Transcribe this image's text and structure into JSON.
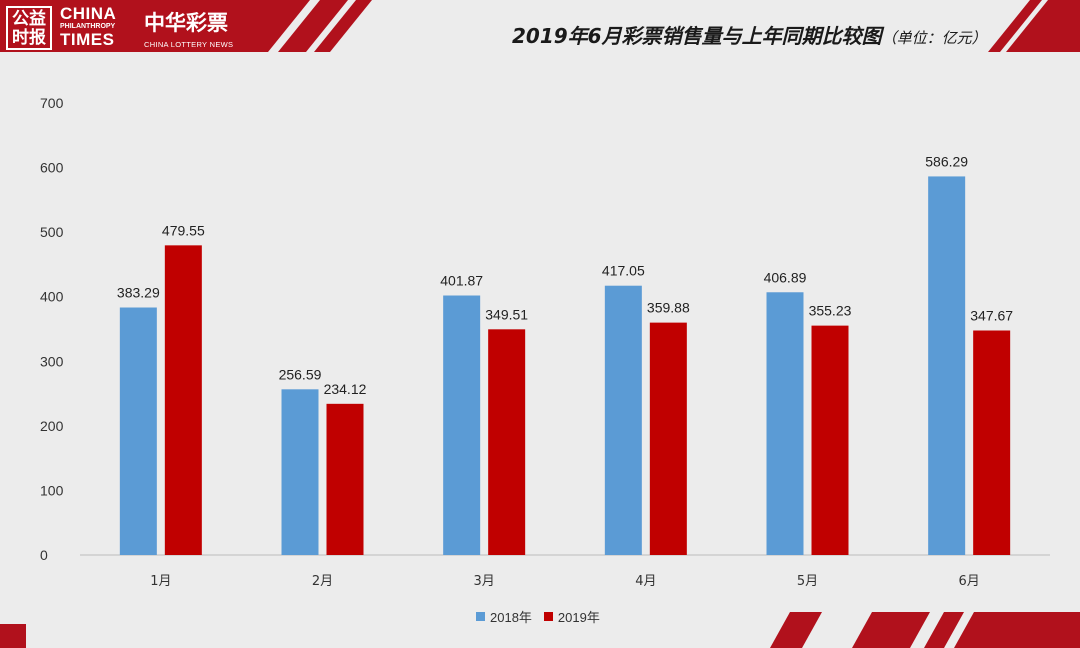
{
  "logo": {
    "seal_text": "公益时报",
    "line1": "CHINA",
    "line2": "PHILANTHROPY",
    "line3": "TIMES",
    "zh_brand": "中华彩票",
    "zh_sub": "CHINA LOTTERY NEWS"
  },
  "title": {
    "main": "2019年6月彩票销售量与上年同期比较图",
    "unit": "（单位：亿元）"
  },
  "colors": {
    "header_red": "#b1111c",
    "series_2018": "#5b9bd5",
    "series_2019": "#c00000",
    "background": "#ececec"
  },
  "chart_data": {
    "type": "bar",
    "categories": [
      "1月",
      "2月",
      "3月",
      "4月",
      "5月",
      "6月"
    ],
    "series": [
      {
        "name": "2018年",
        "values": [
          383.29,
          256.59,
          401.87,
          417.05,
          406.89,
          586.29
        ]
      },
      {
        "name": "2019年",
        "values": [
          479.55,
          234.12,
          349.51,
          359.88,
          355.23,
          347.67
        ]
      }
    ],
    "title": "2019年6月彩票销售量与上年同期比较图",
    "xlabel": "",
    "ylabel": "",
    "ylim": [
      0,
      700
    ],
    "yticks": [
      0,
      100,
      200,
      300,
      400,
      500,
      600,
      700
    ],
    "grid": false,
    "legend": "bottom"
  }
}
